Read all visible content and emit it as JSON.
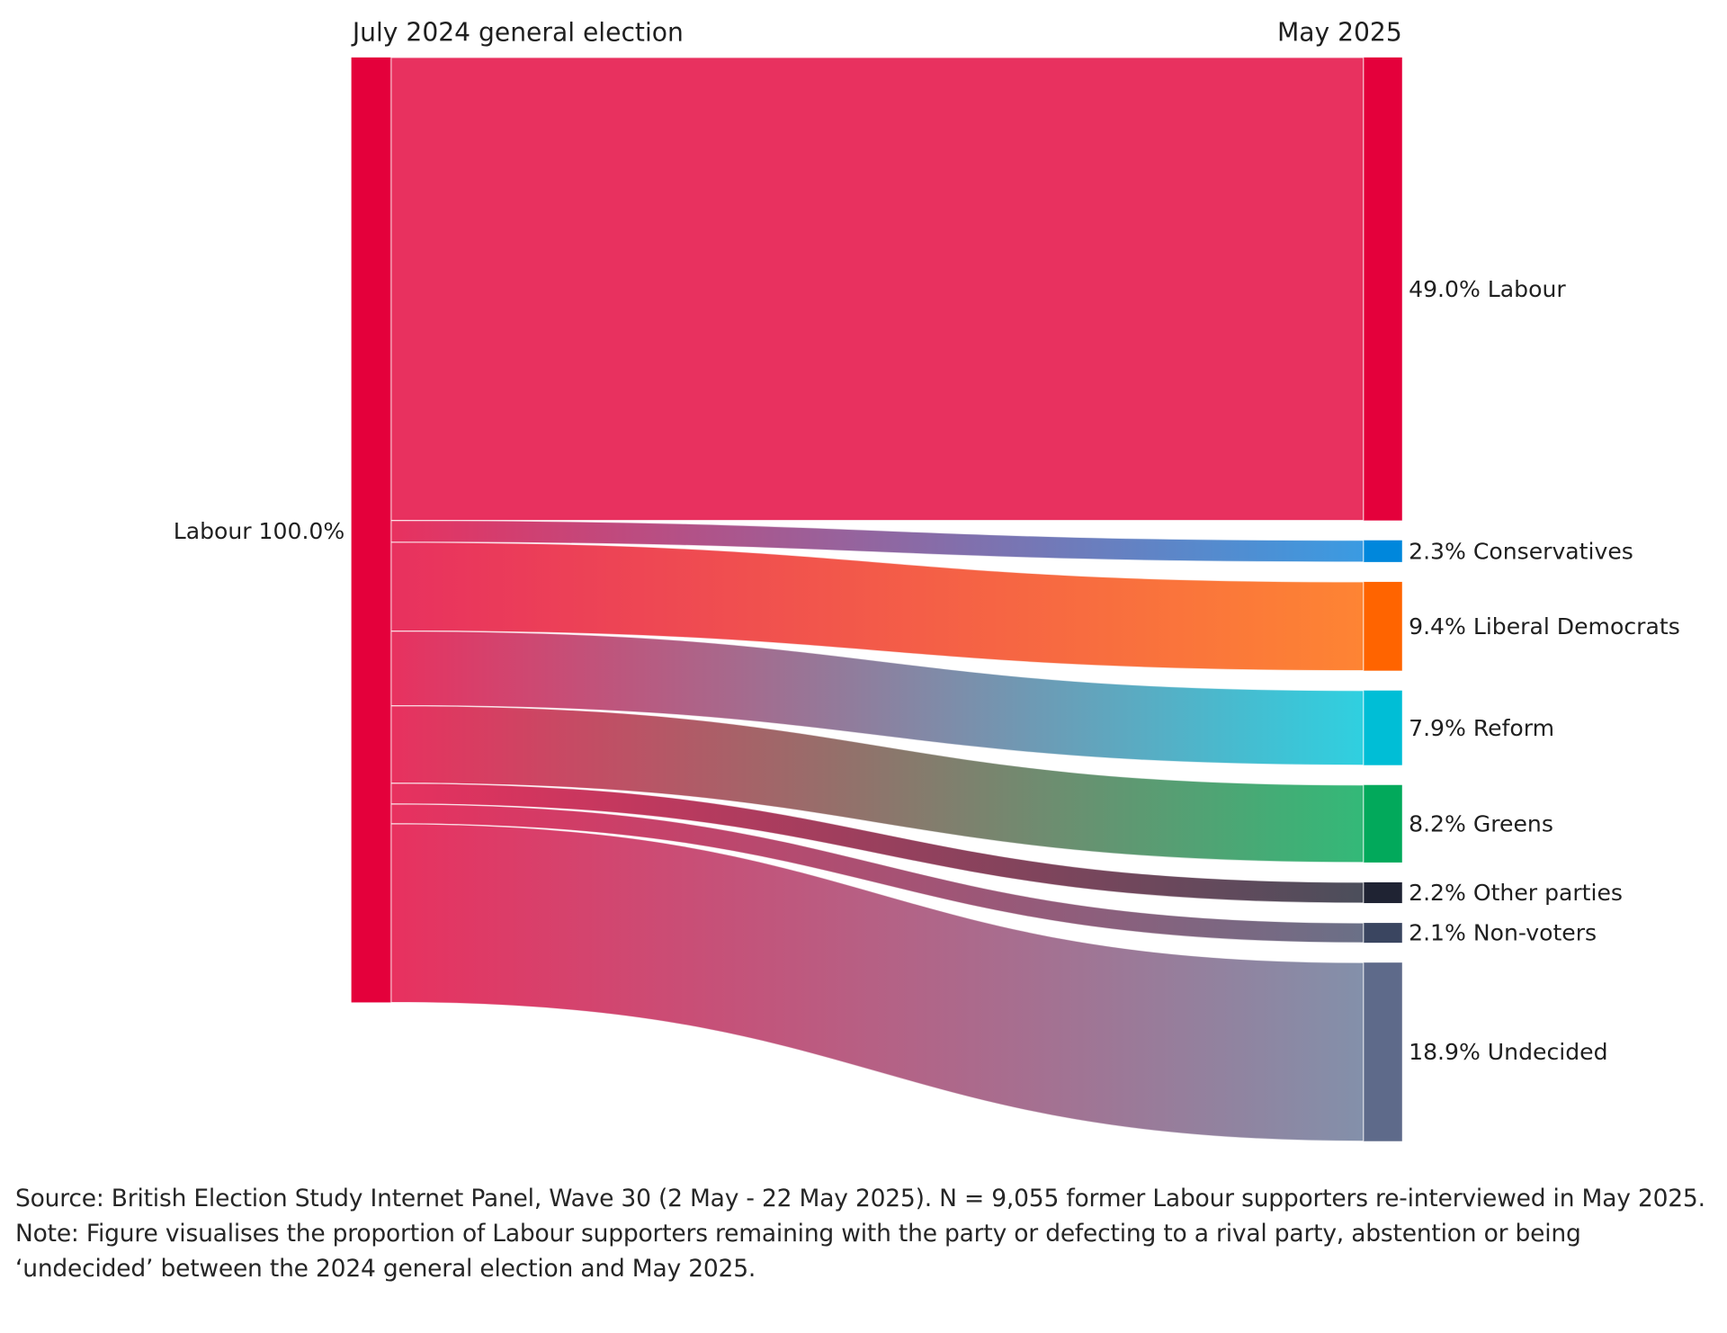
{
  "chart_data": {
    "type": "sankey",
    "left_header": "July 2024 general election",
    "right_header": "May 2025",
    "source_node": {
      "name": "Labour",
      "value": 100.0,
      "label": "Labour 100.0%",
      "color": "#e4003b"
    },
    "link_start_color": "#e8315f",
    "targets": [
      {
        "name": "Labour",
        "value": 49.0,
        "label": "49.0% Labour",
        "color": "#e4003b",
        "link_end_color": "#e8315f"
      },
      {
        "name": "Conservatives",
        "value": 2.3,
        "label": "2.3% Conservatives",
        "color": "#0087dc",
        "link_end_color": "#3a9be2"
      },
      {
        "name": "Liberal Democrats",
        "value": 9.4,
        "label": "9.4% Liberal Democrats",
        "color": "#ff6400",
        "link_end_color": "#fe8433"
      },
      {
        "name": "Reform",
        "value": 7.9,
        "label": "7.9% Reform",
        "color": "#00bed6",
        "link_end_color": "#2fd0e0"
      },
      {
        "name": "Greens",
        "value": 8.2,
        "label": "8.2% Greens",
        "color": "#02a95b",
        "link_end_color": "#33b978"
      },
      {
        "name": "Other parties",
        "value": 2.2,
        "label": "2.2% Other parties",
        "color": "#1f2333",
        "link_end_color": "#4b4e5b"
      },
      {
        "name": "Non-voters",
        "value": 2.1,
        "label": "2.1% Non-voters",
        "color": "#3a4560",
        "link_end_color": "#6a7087"
      },
      {
        "name": "Undecided",
        "value": 18.9,
        "label": "18.9% Undecided",
        "color": "#5e6a8a",
        "link_end_color": "#8390aa"
      }
    ]
  },
  "footnotes": {
    "source": "Source: British Election Study Internet Panel, Wave 30 (2 May - 22 May 2025). N = 9,055 former Labour supporters re-interviewed in May 2025.",
    "note": "Note: Figure visualises the proportion of Labour supporters remaining with the party or defecting to a rival party, abstention or being ‘undecided’ between the 2024 general election and May 2025."
  }
}
